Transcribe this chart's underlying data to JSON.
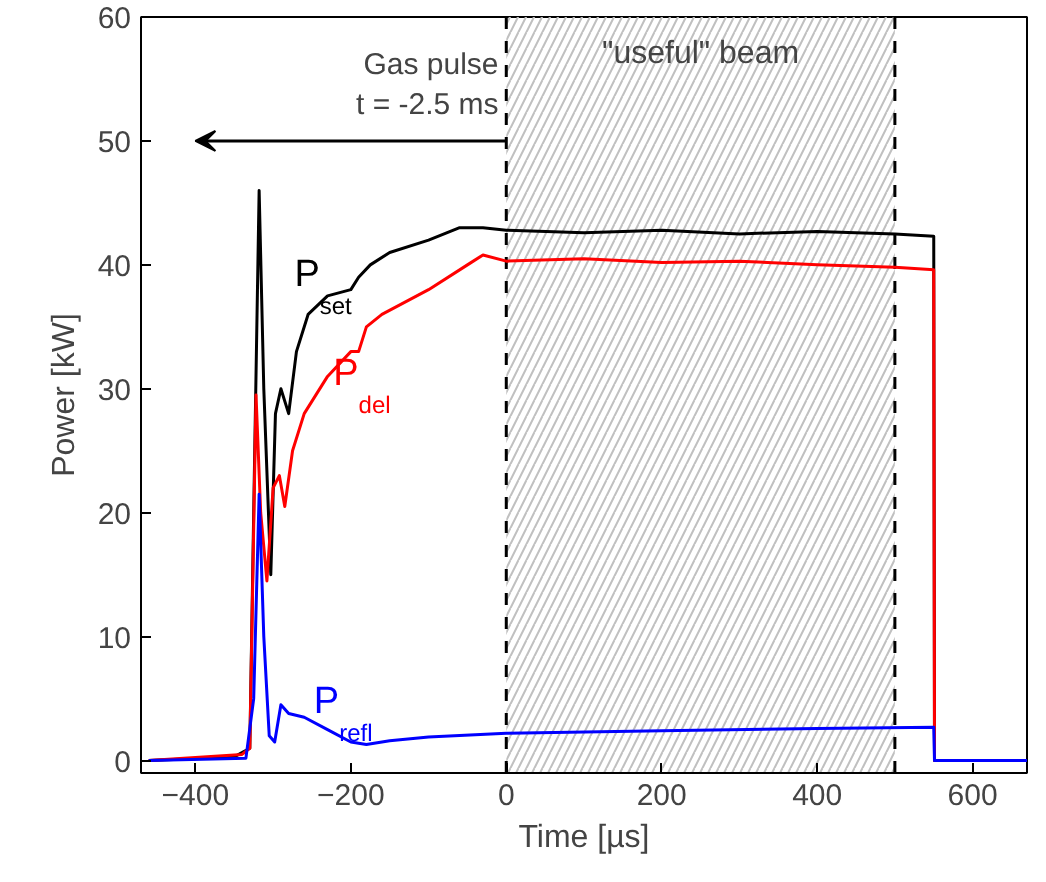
{
  "chart_data": {
    "type": "line",
    "xlabel": "Time [µs]",
    "ylabel": "Power [kW]",
    "xlim": [
      -470,
      670
    ],
    "ylim": [
      -1,
      60
    ],
    "xticks": [
      -400,
      -200,
      0,
      200,
      400,
      600
    ],
    "yticks": [
      0,
      10,
      20,
      30,
      40,
      50,
      60
    ],
    "line_style": "solid",
    "marker": "none",
    "series": [
      {
        "name": "P$_{set}$",
        "color": "#000000",
        "x": [
          -460,
          -350,
          -330,
          -325,
          -318,
          -312,
          -303,
          -297,
          -290,
          -280,
          -270,
          -255,
          -230,
          -200,
          -190,
          -175,
          -150,
          -100,
          -60,
          -30,
          0,
          100,
          200,
          300,
          400,
          500,
          550,
          551,
          670
        ],
        "values": [
          0,
          0.3,
          1,
          20,
          46,
          30,
          15,
          28,
          30,
          28,
          33,
          36,
          37.5,
          38,
          39,
          40,
          41,
          42,
          43,
          43,
          42.8,
          42.6,
          42.8,
          42.5,
          42.7,
          42.5,
          42.3,
          0,
          0
        ]
      },
      {
        "name": "P$_{del}$",
        "color": "#ff0000",
        "x": [
          -460,
          -340,
          -330,
          -322,
          -316,
          -308,
          -300,
          -292,
          -285,
          -275,
          -260,
          -230,
          -200,
          -190,
          -180,
          -160,
          -100,
          -50,
          -30,
          0,
          100,
          200,
          300,
          400,
          500,
          550,
          551,
          670
        ],
        "values": [
          0,
          0.5,
          1,
          29.5,
          20,
          14.5,
          22,
          23,
          20.5,
          25,
          28,
          31,
          33,
          33,
          35,
          36,
          38,
          40,
          40.8,
          40.3,
          40.5,
          40.2,
          40.3,
          40.0,
          39.8,
          39.6,
          0,
          0
        ]
      },
      {
        "name": "P$_{refl}$",
        "color": "#0000ff",
        "x": [
          -460,
          -335,
          -325,
          -318,
          -312,
          -305,
          -298,
          -290,
          -280,
          -260,
          -230,
          -200,
          -180,
          -150,
          -100,
          0,
          200,
          400,
          550,
          551,
          670
        ],
        "values": [
          0,
          0.2,
          5,
          21.5,
          10,
          2,
          1.5,
          4.5,
          3.8,
          3.5,
          2.5,
          1.5,
          1.3,
          1.6,
          1.9,
          2.2,
          2.4,
          2.6,
          2.7,
          0,
          0
        ]
      }
    ],
    "bands": [
      {
        "axis": "x",
        "from": 0,
        "to": 500,
        "label": "\"useful\" beam",
        "color": "#c0c0c0"
      }
    ],
    "ref_lines": [
      {
        "axis": "x",
        "value": 0,
        "label": null,
        "color": "#000000",
        "line_style": "dashed"
      },
      {
        "axis": "x",
        "value": 500,
        "label": null,
        "color": "#000000",
        "line_style": "dashed"
      }
    ],
    "annotations": [
      "Gas pulse\nt = -2.5 ms"
    ]
  }
}
